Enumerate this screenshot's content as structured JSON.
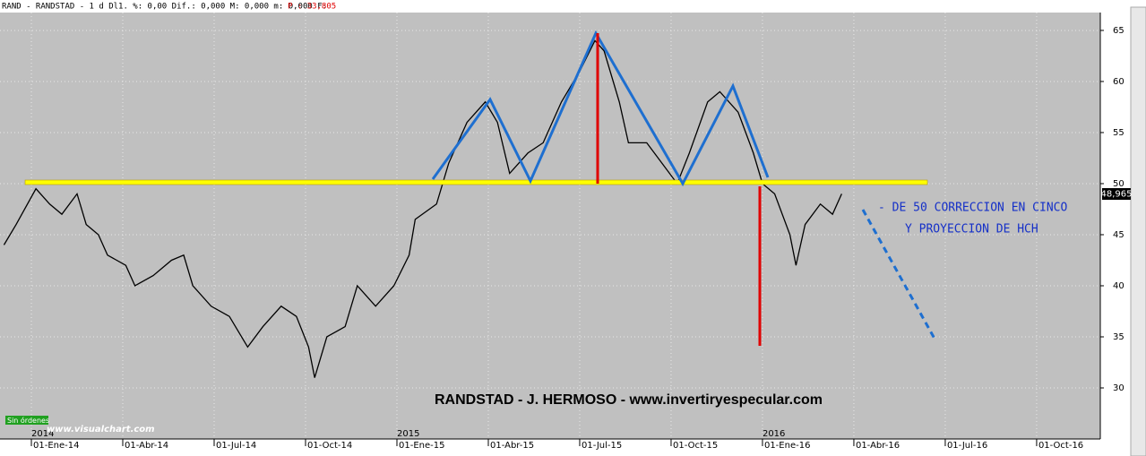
{
  "chart_data": {
    "type": "line",
    "header": "RAND - RANDSTAD -  1 d Dl1.  %: 0,00 Dif.: 0,000 M: 0,000 m: 0,000 F:",
    "header_price": "P : 33,805",
    "title": "RANDSTAD  - J. HERMOSO - www.invertiryespecular.com",
    "annotations": [
      "- DE 50 CORRECCION EN CINCO",
      "Y PROYECCION DE HCH"
    ],
    "last_price": "48,965",
    "status": "Sin órdenes",
    "watermark": "www.visualchart.com",
    "years": [
      "2014",
      "2015",
      "2016"
    ],
    "x": [
      -0.9,
      -0.5,
      0.15,
      0.6,
      1.0,
      1.5,
      1.8,
      2.2,
      2.5,
      3.1,
      3.4,
      4.0,
      4.6,
      5.0,
      5.3,
      5.9,
      6.5,
      7.1,
      7.6,
      8.2,
      8.7,
      9.1,
      9.3,
      9.7,
      10.3,
      10.7,
      11.3,
      11.9,
      12.4,
      12.6,
      13.3,
      13.7,
      14.3,
      14.9,
      15.3,
      15.7,
      16.3,
      16.8,
      17.4,
      18.0,
      18.5,
      18.8,
      19.3,
      19.6,
      20.2,
      20.7,
      21.2,
      21.6,
      22.2,
      22.6,
      23.2,
      23.7,
      24.0,
      24.4,
      24.9,
      25.1,
      25.4,
      25.9,
      26.3,
      26.6
    ],
    "series": [
      {
        "name": "RAND",
        "color": "#000000",
        "values": [
          44,
          46,
          49.5,
          48,
          47,
          49,
          46,
          45,
          43,
          42,
          40,
          41,
          42.5,
          43,
          40,
          38,
          37,
          34,
          36,
          38,
          37,
          34,
          31,
          35,
          36,
          40,
          38,
          40,
          43,
          46.5,
          48,
          52,
          56,
          58,
          56,
          51,
          53,
          54,
          58,
          61,
          64,
          63,
          58,
          54,
          54,
          52,
          50,
          53,
          58,
          59,
          57,
          53,
          50,
          49,
          45,
          42,
          46,
          48,
          47,
          49
        ]
      }
    ],
    "xlim": [
      -1.03,
      35.09
    ],
    "xticks": [
      {
        "value": 0,
        "label": "01-Ene-14"
      },
      {
        "value": 3,
        "label": "01-Abr-14"
      },
      {
        "value": 6,
        "label": "01-Jul-14"
      },
      {
        "value": 9,
        "label": "01-Oct-14"
      },
      {
        "value": 12,
        "label": "01-Ene-15"
      },
      {
        "value": 15,
        "label": "01-Abr-15"
      },
      {
        "value": 18,
        "label": "01-Jul-15"
      },
      {
        "value": 21,
        "label": "01-Oct-15"
      },
      {
        "value": 24,
        "label": "01-Ene-16"
      },
      {
        "value": 27,
        "label": "01-Abr-16"
      },
      {
        "value": 30,
        "label": "01-Jul-16"
      },
      {
        "value": 33,
        "label": "01-Oct-16"
      }
    ],
    "ylim": [
      25,
      66.75
    ],
    "yticks": [
      30,
      35,
      40,
      45,
      50,
      55,
      60,
      65
    ],
    "grid": true
  }
}
